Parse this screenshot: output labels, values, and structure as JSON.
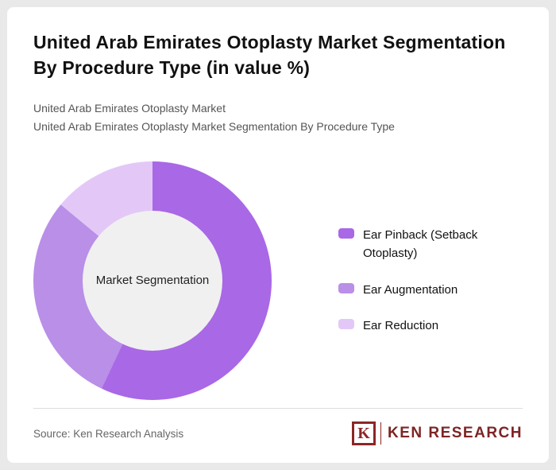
{
  "header": {
    "title": "United Arab Emirates Otoplasty Market Segmentation By Procedure Type (in value %)",
    "subtitle1": "United Arab Emirates Otoplasty Market",
    "subtitle2": "United Arab Emirates Otoplasty Market Segmentation By Procedure Type"
  },
  "chart_data": {
    "type": "pie",
    "donut": true,
    "title": "United Arab Emirates Otoplasty Market Segmentation By Procedure Type (in value %)",
    "center_label": "Market Segmentation",
    "categories": [
      "Ear Pinback (Setback Otoplasty)",
      "Ear Augmentation",
      "Ear Reduction"
    ],
    "values": [
      57,
      29,
      14
    ],
    "colors": [
      "#a968e6",
      "#b98fe8",
      "#e3c8f7"
    ],
    "start_angle_deg": 0,
    "direction": "clockwise",
    "legend_position": "right",
    "hole_color": "#f0f0f0"
  },
  "footer": {
    "source": "Source: Ken Research Analysis",
    "logo_k": "K",
    "logo_text": "KEN RESEARCH"
  }
}
